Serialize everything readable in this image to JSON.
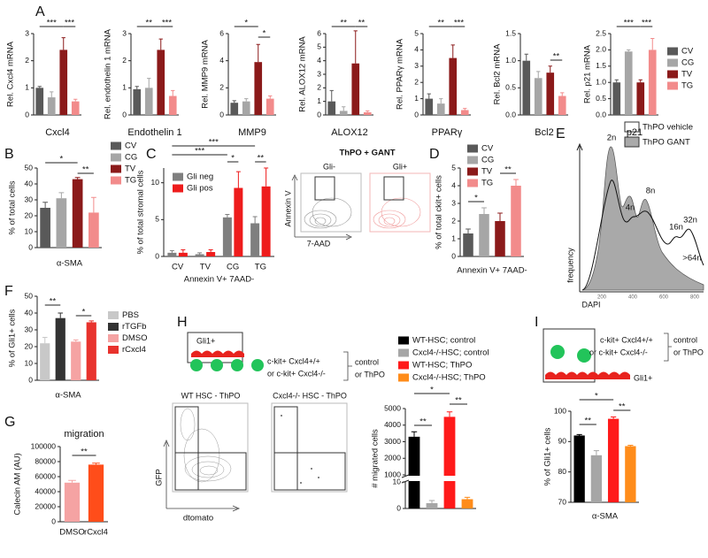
{
  "panel_labels": [
    "A",
    "B",
    "C",
    "D",
    "E",
    "F",
    "G",
    "H",
    "I"
  ],
  "chart_data": [
    {
      "type": "bar",
      "ylabel": "Rel. Cxcl4 mRNA",
      "xlabel": "Cxcl4",
      "categories": [
        null,
        null,
        null,
        null
      ],
      "colors": [
        "#595959",
        "#a6a6a6",
        "#8b1a1a",
        "#f28b8b"
      ],
      "values": [
        1.0,
        0.65,
        2.4,
        0.5
      ],
      "errors": [
        0.05,
        0.2,
        0.45,
        0.08
      ],
      "ylim": [
        0,
        3
      ],
      "yticks": [
        0,
        1,
        2,
        3
      ],
      "annotations": [
        "***",
        "***"
      ],
      "legend": false
    },
    {
      "type": "bar",
      "ylabel": "Rel. endothelin 1 mRNA",
      "xlabel": "Endothelin 1",
      "categories": [
        null,
        null,
        null,
        null
      ],
      "colors": [
        "#595959",
        "#a6a6a6",
        "#8b1a1a",
        "#f28b8b"
      ],
      "values": [
        0.95,
        1.0,
        2.4,
        0.7
      ],
      "errors": [
        0.1,
        0.35,
        0.4,
        0.2
      ],
      "ylim": [
        0,
        3
      ],
      "yticks": [
        0,
        1,
        2,
        3
      ],
      "annotations": [
        "**",
        "***"
      ],
      "legend": false
    },
    {
      "type": "bar",
      "ylabel": "Rel. MMP9 mRNA",
      "xlabel": "MMP9",
      "categories": [
        null,
        null,
        null,
        null
      ],
      "colors": [
        "#595959",
        "#a6a6a6",
        "#8b1a1a",
        "#f28b8b"
      ],
      "values": [
        0.9,
        1.0,
        3.9,
        1.2
      ],
      "errors": [
        0.15,
        0.2,
        1.3,
        0.2
      ],
      "ylim": [
        0,
        6
      ],
      "yticks": [
        0,
        2,
        4,
        6
      ],
      "annotations": [
        "*",
        "*"
      ],
      "legend": false
    },
    {
      "type": "bar",
      "ylabel": "Rel. ALOX12 mRNA",
      "xlabel": "ALOX12",
      "categories": [
        null,
        null,
        null,
        null
      ],
      "colors": [
        "#595959",
        "#a6a6a6",
        "#8b1a1a",
        "#f28b8b"
      ],
      "values": [
        1.0,
        0.3,
        3.8,
        0.2
      ],
      "errors": [
        0.8,
        0.3,
        2.4,
        0.1
      ],
      "ylim": [
        0,
        6
      ],
      "yticks": [
        0,
        1,
        2,
        3,
        4,
        5,
        6
      ],
      "annotations": [
        "**",
        "**"
      ],
      "legend": false
    },
    {
      "type": "bar",
      "ylabel": "Rel. PPARγ mRNA",
      "xlabel": "PPARγ",
      "categories": [
        null,
        null,
        null,
        null
      ],
      "colors": [
        "#595959",
        "#a6a6a6",
        "#8b1a1a",
        "#f28b8b"
      ],
      "values": [
        1.0,
        0.7,
        3.5,
        0.3
      ],
      "errors": [
        0.3,
        0.3,
        0.8,
        0.1
      ],
      "ylim": [
        0,
        5
      ],
      "yticks": [
        0,
        1,
        2,
        3,
        4,
        5
      ],
      "annotations": [
        "**",
        "***"
      ],
      "legend": false
    },
    {
      "type": "bar",
      "ylabel": "Rel. Bcl2 mRNA",
      "xlabel": "Bcl2",
      "categories": [
        null,
        null,
        null,
        null
      ],
      "colors": [
        "#595959",
        "#a6a6a6",
        "#8b1a1a",
        "#f28b8b"
      ],
      "values": [
        1.0,
        0.68,
        0.78,
        0.35
      ],
      "errors": [
        0.12,
        0.12,
        0.12,
        0.06
      ],
      "ylim": [
        0,
        1.5
      ],
      "yticks": [
        {
          "value": 0,
          "label": "0.0"
        },
        0.5,
        {
          "value": 1,
          "label": "1.0"
        },
        1.5
      ],
      "annotations": [
        "**"
      ],
      "legend": false
    },
    {
      "type": "bar",
      "ylabel": "Rel. p21 mRNA",
      "xlabel": "p21",
      "categories": [
        "CV",
        "CG",
        "TV",
        "TG"
      ],
      "colors": [
        "#595959",
        "#a6a6a6",
        "#8b1a1a",
        "#f28b8b"
      ],
      "values": [
        1.0,
        1.95,
        1.0,
        2.0
      ],
      "errors": [
        0.08,
        0.05,
        0.08,
        0.35
      ],
      "ylim": [
        0,
        2.5
      ],
      "yticks": [
        {
          "value": 0,
          "label": "0.0"
        },
        0.5,
        {
          "value": 1,
          "label": "1.0"
        },
        1.5,
        {
          "value": 2,
          "label": "2.0"
        },
        2.5
      ],
      "annotations": [
        "***",
        "***"
      ],
      "legend": "right"
    },
    {
      "type": "bar",
      "ylabel": "% of total cells",
      "xlabel": "α-SMA",
      "categories": [
        "CV",
        "CG",
        "TV",
        "TG"
      ],
      "colors": [
        "#595959",
        "#a6a6a6",
        "#8b1a1a",
        "#f28b8b"
      ],
      "values": [
        25,
        31,
        43,
        22
      ],
      "errors": [
        3.5,
        3.5,
        1,
        9.5
      ],
      "ylim": [
        0,
        50
      ],
      "yticks": [
        0,
        10,
        20,
        30,
        40,
        50
      ],
      "annotations": [
        "*",
        "**"
      ],
      "legend": "top-right"
    },
    {
      "type": "bar",
      "ylabel": "% of total stromal cells",
      "xlabel": "Annexin V+ 7AAD-",
      "categories": [
        "CV",
        "TV",
        "CG",
        "TG"
      ],
      "series": [
        {
          "name": "Gli neg",
          "color": "#7f7f7f",
          "values": [
            0.5,
            0.3,
            5.3,
            4.5
          ],
          "errors": [
            0.3,
            0.2,
            0.4,
            0.9
          ]
        },
        {
          "name": "Gli pos",
          "color": "#ee1c1c",
          "values": [
            0.5,
            0.6,
            9.3,
            9.5
          ],
          "errors": [
            0.4,
            0.3,
            2.2,
            2.5
          ]
        }
      ],
      "ylim": [
        0,
        12
      ],
      "yticks": [
        0,
        5,
        10
      ],
      "annotations": [
        "***",
        "***",
        "*",
        "**"
      ],
      "legend": "left"
    },
    {
      "type": "bar",
      "ylabel": "% of total ckit+ cells",
      "xlabel": "Annexin V+ 7AAD-",
      "categories": [
        "CV",
        "CG",
        "TV",
        "TG"
      ],
      "colors": [
        "#595959",
        "#a6a6a6",
        "#8b1a1a",
        "#f28b8b"
      ],
      "values": [
        1.3,
        2.4,
        2.0,
        4.0
      ],
      "errors": [
        0.25,
        0.35,
        0.45,
        0.35
      ],
      "ylim": [
        0,
        5
      ],
      "yticks": [
        0,
        1,
        2,
        3,
        4,
        5
      ],
      "annotations": [
        "*",
        "**"
      ],
      "legend": "top-left"
    },
    {
      "type": "bar",
      "ylabel": "% of Gli1+ cells",
      "xlabel": "α-SMA",
      "categories": [
        "PBS",
        "rTGFb",
        "DMSO",
        "rCxcl4"
      ],
      "colors": [
        "#c8c8c8",
        "#333333",
        "#f5a3a3",
        "#e8322d"
      ],
      "values": [
        22,
        37,
        23,
        34.5
      ],
      "errors": [
        3.5,
        3,
        1,
        0.8
      ],
      "ylim": [
        0,
        50
      ],
      "yticks": [
        0,
        10,
        20,
        30,
        40,
        50
      ],
      "annotations": [
        "**",
        "*"
      ],
      "legend": "right"
    },
    {
      "type": "bar",
      "title": "migration",
      "ylabel": "Calecin AM (AU)",
      "categories": [
        "DMSO",
        "rCxcl4"
      ],
      "colors": [
        "#f5a3a3",
        "#ff4d1a"
      ],
      "values": [
        52000,
        76000
      ],
      "errors": [
        3000,
        2000
      ],
      "ylim": [
        0,
        100000
      ],
      "yticks": [
        0,
        20000,
        40000,
        60000,
        80000,
        100000
      ],
      "annotations": [
        "**"
      ],
      "legend": false
    },
    {
      "type": "bar",
      "ylabel": "# migrated cells",
      "categories": [
        "WT-HSC; control",
        "Cxcl4-/-HSC; control",
        "WT-HSC; ThPO",
        "Cxcl4-/-HSC; ThPO"
      ],
      "colors": [
        "#000000",
        "#a6a6a6",
        "#ff1a1a",
        "#ff8c1a"
      ],
      "values": [
        3300,
        2,
        4500,
        3.5
      ],
      "errors": [
        300,
        1,
        300,
        0.7
      ],
      "ylim": [
        0,
        5000
      ],
      "ybreak": [
        10,
        1000
      ],
      "yticks": [
        0,
        10,
        1000,
        2000,
        3000,
        4000,
        5000
      ],
      "annotations": [
        "*",
        "**",
        "**"
      ],
      "legend": "top"
    },
    {
      "type": "bar",
      "ylabel": "% of Gli1+ cells",
      "xlabel": "α-SMA",
      "categories": [
        null,
        null,
        null,
        null
      ],
      "colors": [
        "#000000",
        "#a6a6a6",
        "#ff1a1a",
        "#ff8c1a"
      ],
      "values": [
        92,
        85.5,
        97.5,
        88.5
      ],
      "errors": [
        0.3,
        1.5,
        0.6,
        0.3
      ],
      "ylim": [
        70,
        100
      ],
      "yticks": [
        70,
        80,
        90,
        100
      ],
      "annotations": [
        "*",
        "**",
        "**"
      ],
      "legend": false
    }
  ],
  "flow_C": {
    "title": "ThPO + GANT",
    "plots": [
      "Gli-",
      "Gli+"
    ],
    "ylabel": "Annexin V",
    "xlabel": "7-AAD"
  },
  "histogram_E": {
    "legend": [
      "ThPO vehicle",
      "ThPO GANT"
    ],
    "peaks": [
      "2n",
      "4n",
      "8n",
      "16n",
      "32n",
      ">64n"
    ],
    "xticks": [
      200,
      400,
      600,
      800
    ],
    "xlabel": "DAPI",
    "ylabel": "frequency"
  },
  "diagram_H": {
    "cell_label": "Gli1+",
    "cells": "c-kit+ Cxcl4+/+",
    "cells_alt": "or c-kit+ Cxcl4-/-",
    "treatment": "control",
    "treatment_alt": "or ThPO"
  },
  "flow_H": {
    "plots": [
      "WT HSC - ThPO",
      "Cxcl4-/- HSC - ThPO"
    ],
    "ylabel": "GFP",
    "xlabel": "dtomato"
  },
  "diagram_I": {
    "cell_label": "Gli1+",
    "cells": "c-kit+ Cxcl4+/+",
    "cells_alt": "or c-kit+ Cxcl4-/-",
    "treatment": "control",
    "treatment_alt": "or ThPO"
  }
}
